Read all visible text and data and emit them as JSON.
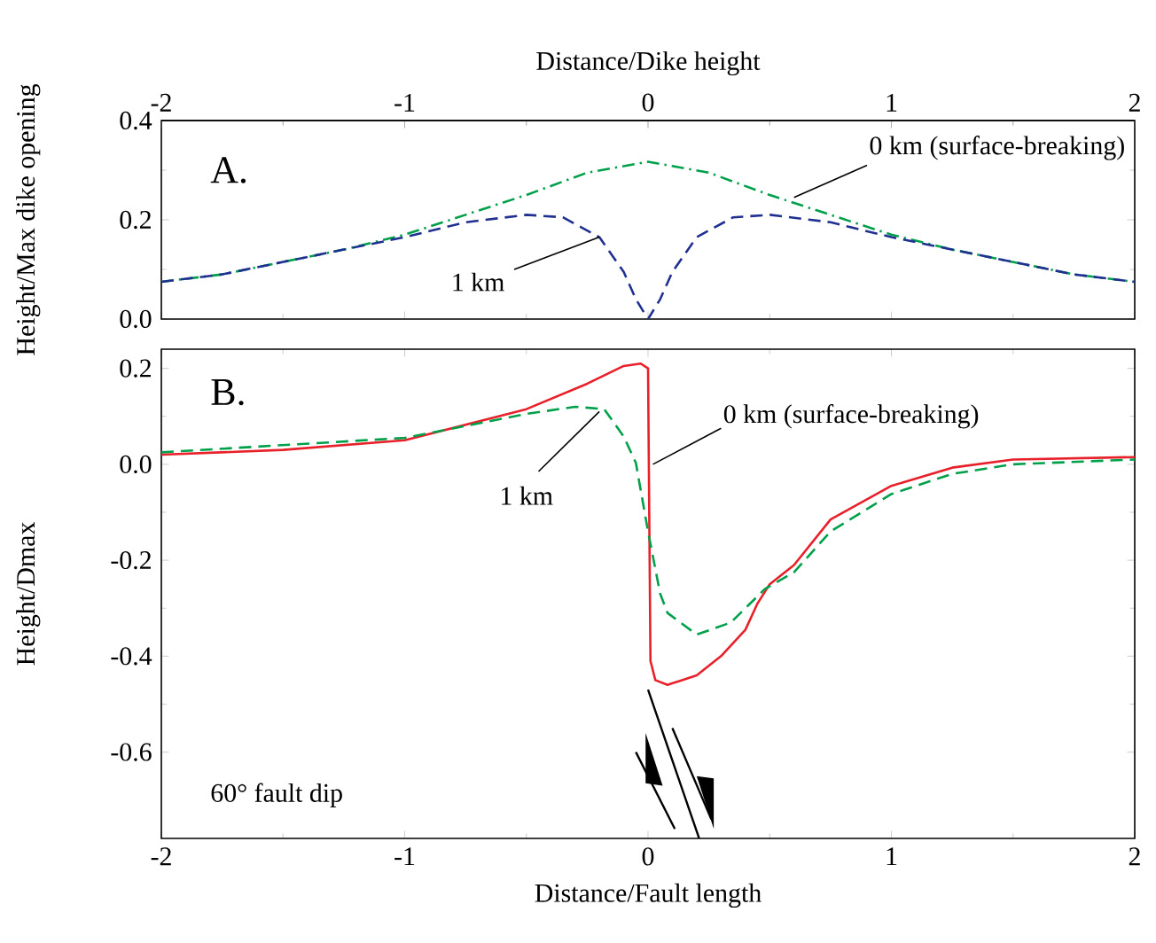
{
  "chart_data": [
    {
      "type": "line",
      "x2label": "Distance/Dike height",
      "ylabel": "Height/Max dike opening",
      "xlim": [
        -2,
        2
      ],
      "xticks": [
        -2,
        -1,
        0,
        1,
        2
      ],
      "tick_labels": "y",
      "x2lim": [
        -2,
        2
      ],
      "x2ticks": [
        -2,
        -1,
        0,
        1,
        2
      ],
      "ylim": [
        0,
        0.4
      ],
      "yticks": [
        {
          "value": 0,
          "label": "0.0"
        },
        {
          "value": 0.2,
          "label": "0.2"
        },
        {
          "value": 0.4,
          "label": "0.4"
        }
      ],
      "annotations": [
        "A."
      ],
      "series": [
        {
          "name": "0 km  (surface-breaking)",
          "color": "#00a04a",
          "line_style": "dashdot",
          "x": [
            -2,
            -1.75,
            -1.5,
            -1.25,
            -1,
            -0.75,
            -0.5,
            -0.25,
            0,
            0.25,
            0.5,
            0.75,
            1,
            1.25,
            1.5,
            1.75,
            2
          ],
          "values": [
            0.075,
            0.09,
            0.115,
            0.14,
            0.17,
            0.21,
            0.25,
            0.295,
            0.317,
            0.295,
            0.25,
            0.21,
            0.17,
            0.14,
            0.115,
            0.09,
            0.075
          ]
        },
        {
          "name": "1 km",
          "color": "#1f3090",
          "line_style": "dashed",
          "x": [
            -2,
            -1.75,
            -1.5,
            -1.25,
            -1,
            -0.75,
            -0.5,
            -0.35,
            -0.2,
            -0.1,
            -0.05,
            0,
            0.05,
            0.1,
            0.2,
            0.35,
            0.5,
            0.75,
            1,
            1.25,
            1.5,
            1.75,
            2
          ],
          "values": [
            0.075,
            0.09,
            0.115,
            0.14,
            0.165,
            0.195,
            0.21,
            0.205,
            0.165,
            0.095,
            0.04,
            0.0,
            0.04,
            0.095,
            0.165,
            0.205,
            0.21,
            0.195,
            0.165,
            0.14,
            0.115,
            0.09,
            0.075
          ]
        }
      ]
    },
    {
      "type": "line",
      "xlabel": "Distance/Fault length",
      "ylabel": "Height/Dmax",
      "xlim": [
        -2,
        2
      ],
      "xticks": [
        -2,
        -1,
        0,
        1,
        2
      ],
      "ylim": [
        -0.78,
        0.24
      ],
      "yticks": [
        {
          "value": -0.6,
          "label": "-0.6"
        },
        {
          "value": -0.4,
          "label": "-0.4"
        },
        {
          "value": -0.2,
          "label": "-0.2"
        },
        {
          "value": 0,
          "label": "0.0"
        },
        {
          "value": 0.2,
          "label": "0.2"
        }
      ],
      "annotations": [
        "B.",
        "60° fault dip"
      ],
      "series": [
        {
          "name": "0 km (surface-breaking)",
          "color": "#e8202a",
          "line_style": "solid",
          "x": [
            -2,
            -1.5,
            -1,
            -0.5,
            -0.25,
            -0.1,
            -0.03,
            0,
            0.01,
            0.03,
            0.08,
            0.2,
            0.3,
            0.4,
            0.45,
            0.5,
            0.6,
            0.75,
            1,
            1.25,
            1.5,
            2
          ],
          "values": [
            0.02,
            0.03,
            0.05,
            0.115,
            0.168,
            0.205,
            0.21,
            0.2,
            -0.41,
            -0.45,
            -0.46,
            -0.44,
            -0.4,
            -0.345,
            -0.29,
            -0.25,
            -0.21,
            -0.115,
            -0.045,
            -0.007,
            0.01,
            0.015
          ]
        },
        {
          "name": "1 km",
          "color": "#00a04a",
          "line_style": "dashed",
          "x": [
            -2,
            -1,
            -0.5,
            -0.3,
            -0.18,
            -0.1,
            -0.05,
            0,
            0.05,
            0.08,
            0.2,
            0.34,
            0.48,
            0.6,
            0.75,
            1,
            1.25,
            1.5,
            2
          ],
          "values": [
            0.025,
            0.055,
            0.105,
            0.12,
            0.115,
            0.058,
            0.003,
            -0.14,
            -0.27,
            -0.31,
            -0.355,
            -0.33,
            -0.26,
            -0.225,
            -0.14,
            -0.062,
            -0.02,
            0.0,
            0.01
          ]
        }
      ]
    }
  ]
}
